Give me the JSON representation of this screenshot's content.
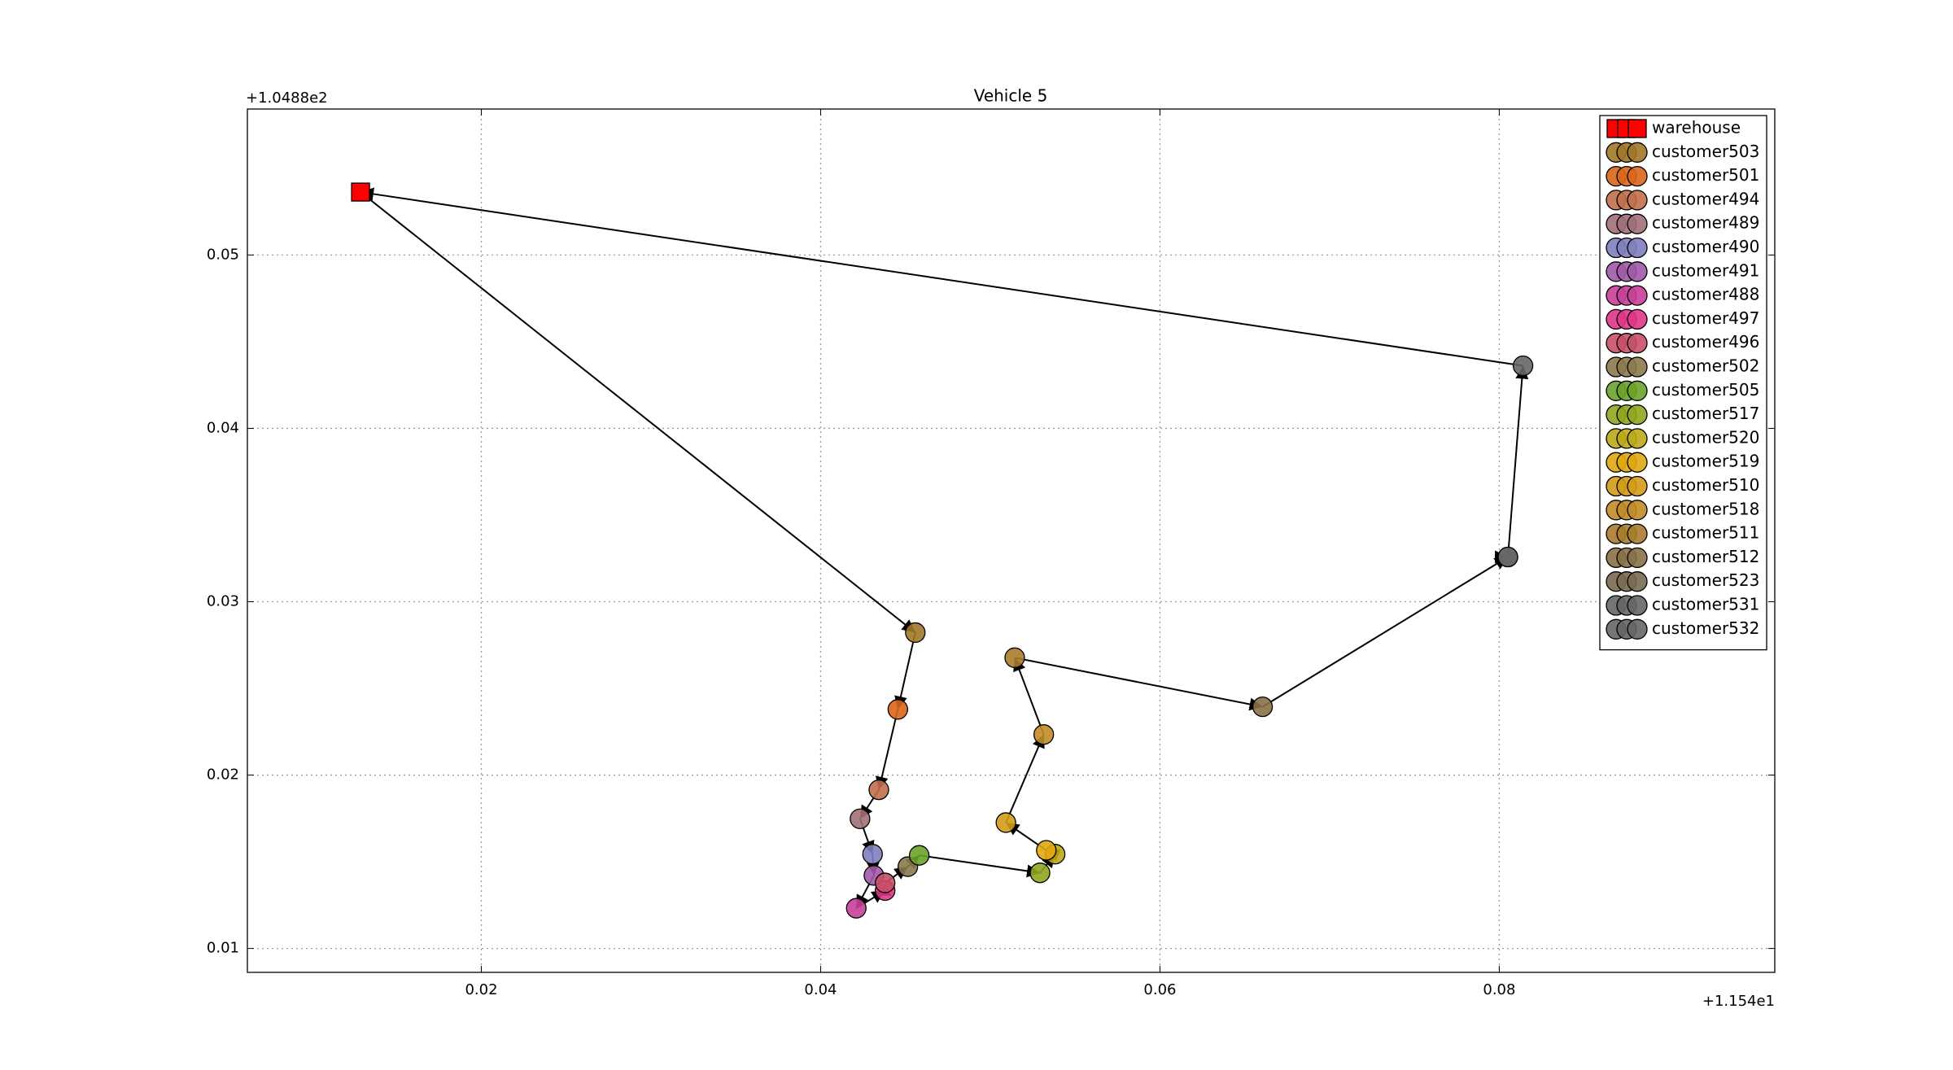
{
  "chart_data": {
    "type": "scatter",
    "title": "Vehicle 5",
    "x_offset_label": "+1.154e1",
    "y_offset_label": "+1.0488e2",
    "xlim": [
      0.00621,
      0.09624
    ],
    "ylim": [
      0.00862,
      0.05842
    ],
    "xticks": [
      0.02,
      0.04,
      0.06,
      0.08
    ],
    "yticks": [
      0.01,
      0.02,
      0.03,
      0.04,
      0.05
    ],
    "grid": true,
    "legend": "upper right",
    "series": [
      {
        "name": "warehouse",
        "color": "#ff0000",
        "marker": "square",
        "x": [
          0.01288
        ],
        "values": [
          0.05363
        ]
      },
      {
        "name": "customer503",
        "color": "#a07828",
        "marker": "circle",
        "x": [
          0.04558
        ],
        "values": [
          0.02822
        ]
      },
      {
        "name": "customer501",
        "color": "#d9661a",
        "marker": "circle",
        "x": [
          0.04455
        ],
        "values": [
          0.02379
        ]
      },
      {
        "name": "customer494",
        "color": "#c0704a",
        "marker": "circle",
        "x": [
          0.04343
        ],
        "values": [
          0.01915
        ]
      },
      {
        "name": "customer489",
        "color": "#a07078",
        "marker": "circle",
        "x": [
          0.04232
        ],
        "values": [
          0.01748
        ]
      },
      {
        "name": "customer490",
        "color": "#7f7fbf",
        "marker": "circle",
        "x": [
          0.04306
        ],
        "values": [
          0.01544
        ]
      },
      {
        "name": "customer491",
        "color": "#a05aa8",
        "marker": "circle",
        "x": [
          0.04314
        ],
        "values": [
          0.01421
        ]
      },
      {
        "name": "customer488",
        "color": "#c84098",
        "marker": "circle",
        "x": [
          0.0421
        ],
        "values": [
          0.01232
        ]
      },
      {
        "name": "customer497",
        "color": "#e0358a",
        "marker": "circle",
        "x": [
          0.0438
        ],
        "values": [
          0.01334
        ]
      },
      {
        "name": "customer496",
        "color": "#c85068",
        "marker": "circle",
        "x": [
          0.0438
        ],
        "values": [
          0.01378
        ]
      },
      {
        "name": "customer502",
        "color": "#8c7a4e",
        "marker": "circle",
        "x": [
          0.04514
        ],
        "values": [
          0.01472
        ]
      },
      {
        "name": "customer505",
        "color": "#6aa22a",
        "marker": "circle",
        "x": [
          0.04581
        ],
        "values": [
          0.01537
        ]
      },
      {
        "name": "customer517",
        "color": "#8fa61e",
        "marker": "circle",
        "x": [
          0.05293
        ],
        "values": [
          0.01436
        ]
      },
      {
        "name": "customer520",
        "color": "#bca818",
        "marker": "circle",
        "x": [
          0.05382
        ],
        "values": [
          0.01544
        ]
      },
      {
        "name": "customer519",
        "color": "#e0a810",
        "marker": "circle",
        "x": [
          0.0533
        ],
        "values": [
          0.01566
        ]
      },
      {
        "name": "customer510",
        "color": "#d39c18",
        "marker": "circle",
        "x": [
          0.05092
        ],
        "values": [
          0.01726
        ]
      },
      {
        "name": "customer518",
        "color": "#c08c28",
        "marker": "circle",
        "x": [
          0.05315
        ],
        "values": [
          0.02234
        ]
      },
      {
        "name": "customer511",
        "color": "#a87c2c",
        "marker": "circle",
        "x": [
          0.05144
        ],
        "values": [
          0.02677
        ]
      },
      {
        "name": "customer512",
        "color": "#8a7048",
        "marker": "circle",
        "x": [
          0.06605
        ],
        "values": [
          0.02394
        ]
      },
      {
        "name": "customer523",
        "color": "#7a6a50",
        "marker": "circle",
        "x": [
          0.08051
        ],
        "values": [
          0.03258
        ]
      },
      {
        "name": "customer531",
        "color": "#666666",
        "marker": "circle",
        "x": [
          0.08051
        ],
        "values": [
          0.03258
        ]
      },
      {
        "name": "customer532",
        "color": "#666666",
        "marker": "circle",
        "x": [
          0.0814
        ],
        "values": [
          0.04361
        ]
      }
    ]
  }
}
